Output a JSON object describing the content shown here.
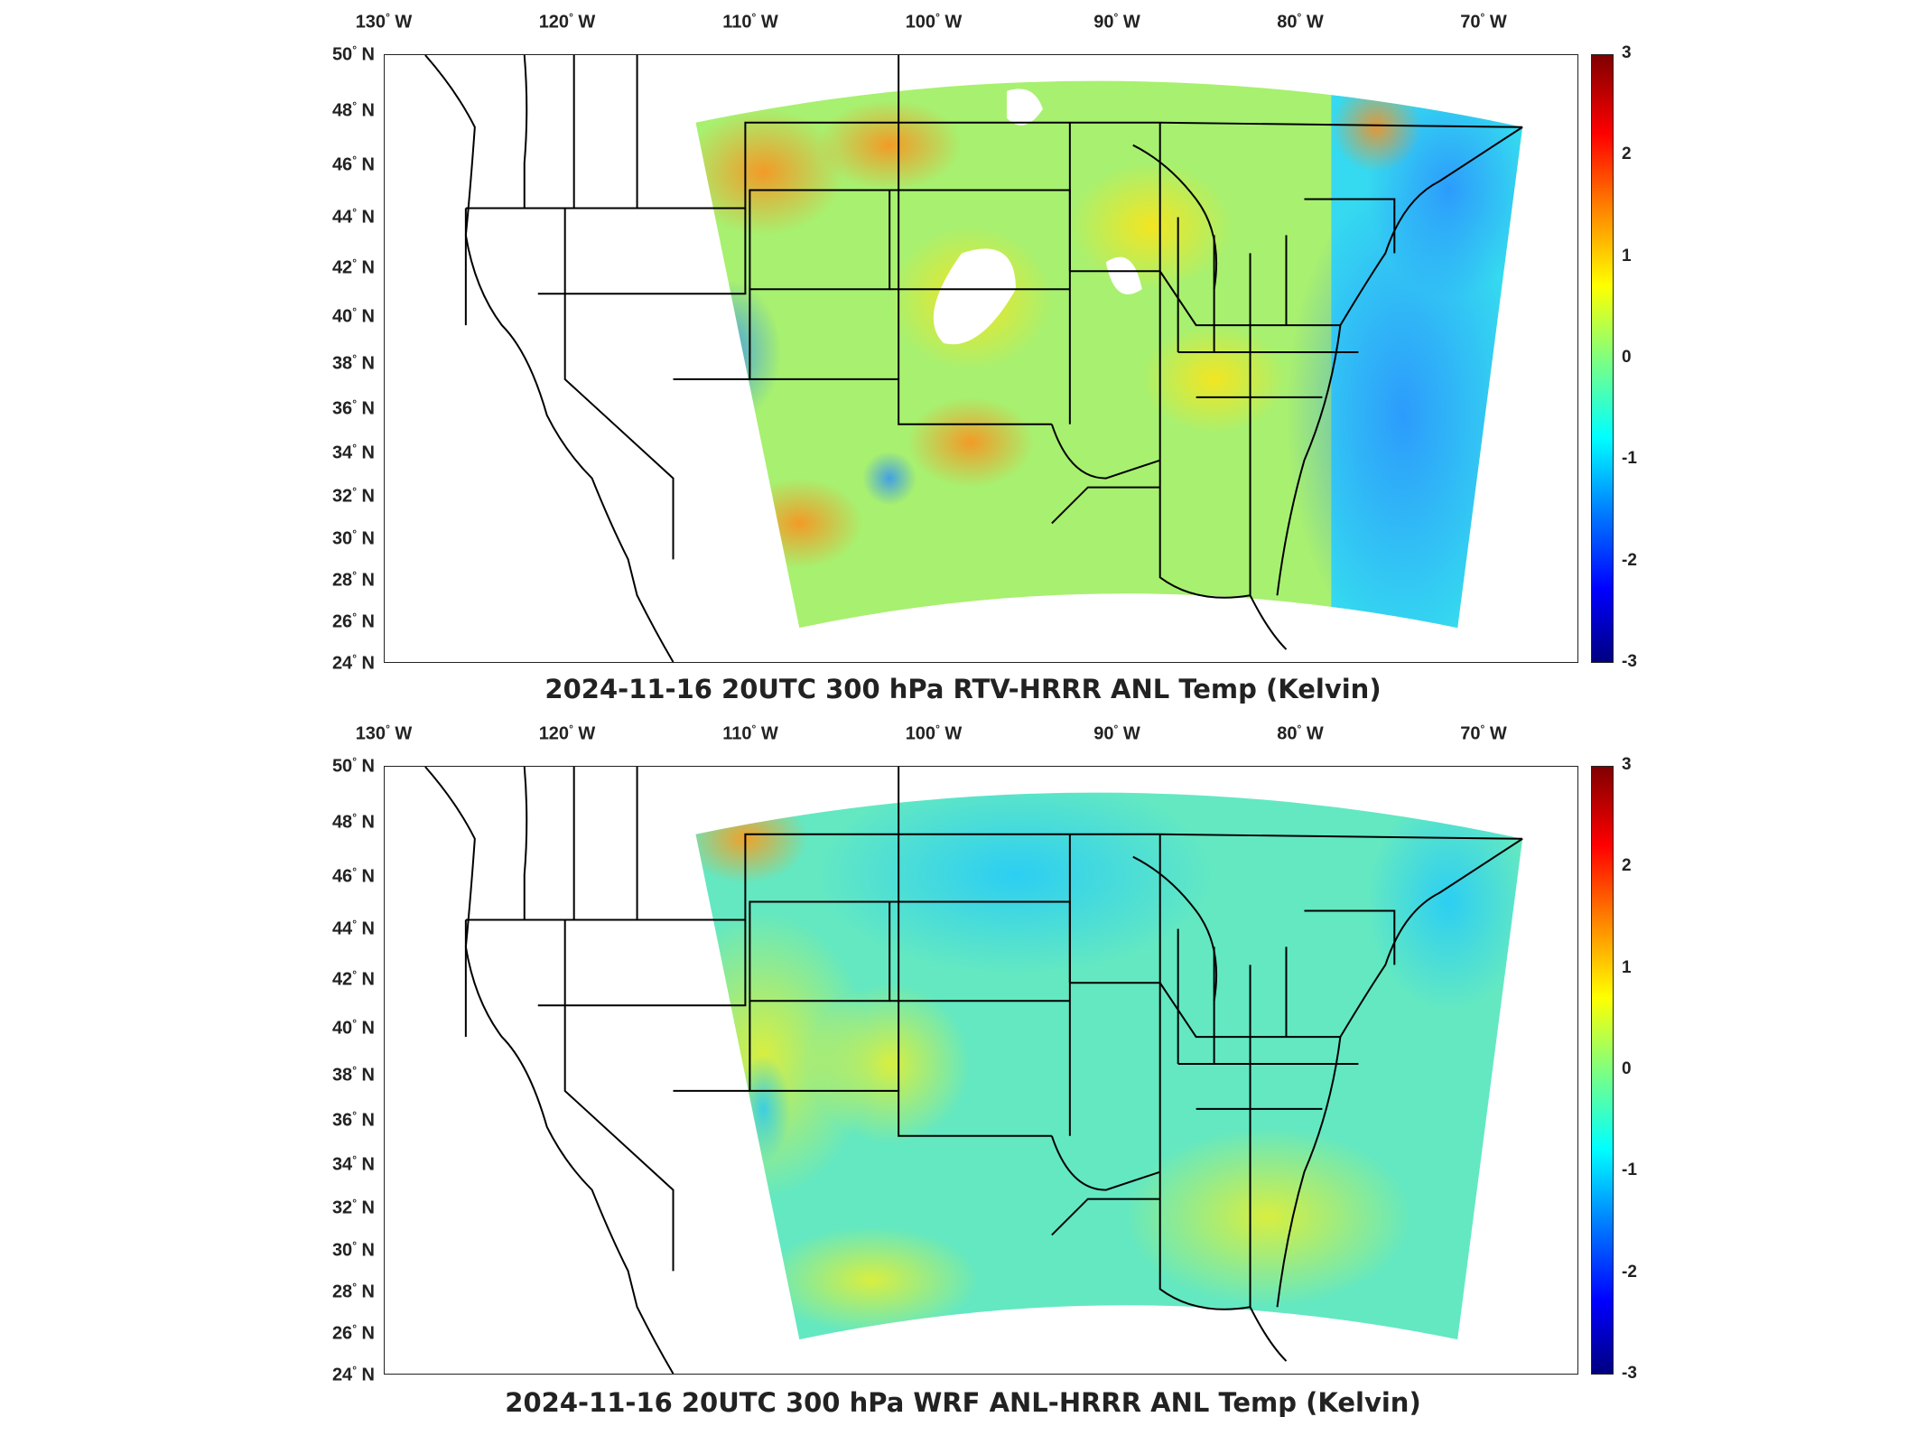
{
  "panels": [
    {
      "title": "2024-11-16 20UTC 300 hPa RTV-HRRR ANL Temp (Kelvin)",
      "field_style": "rtv"
    },
    {
      "title": "2024-11-16 20UTC 300 hPa WRF ANL-HRRR ANL Temp (Kelvin)",
      "field_style": "wrf"
    }
  ],
  "longitude_labels": [
    "130",
    "120",
    "110",
    "100",
    "90",
    "80",
    "70"
  ],
  "longitude_suffix": "W",
  "latitude_labels": [
    "50",
    "48",
    "46",
    "44",
    "42",
    "40",
    "38",
    "36",
    "34",
    "32",
    "30",
    "28",
    "26",
    "24"
  ],
  "latitude_suffix": "N",
  "colorbar": {
    "ticks": [
      "3",
      "2",
      "1",
      "0",
      "-1",
      "-2",
      "-3"
    ],
    "min": -3,
    "max": 3,
    "colormap": "jet"
  }
}
